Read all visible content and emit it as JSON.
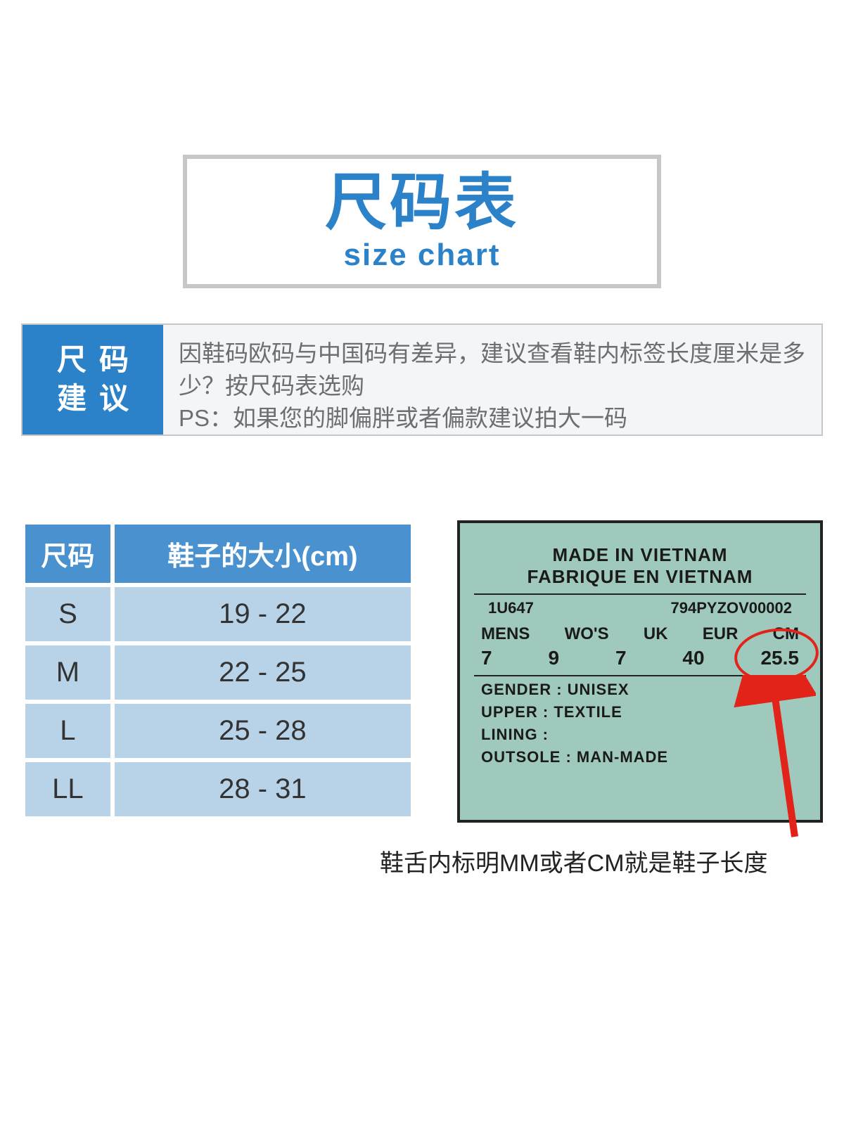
{
  "colors": {
    "brand_blue": "#2c82c9",
    "th_blue": "#4a92cf",
    "td_blue": "#b8d3e8",
    "border_gray": "#c5c7c9",
    "advice_bg": "#f4f5f6",
    "advice_text": "#6b6e72",
    "label_bg": "#9fc9bc",
    "highlight_red": "#e2231a"
  },
  "title": {
    "main": "尺码表",
    "sub": "size chart"
  },
  "advice": {
    "label_line1": "尺码",
    "label_line2": "建议",
    "text": "因鞋码欧码与中国码有差异，建议查看鞋内标签长度厘米是多少？按尺码表选购\nPS：如果您的脚偏胖或者偏款建议拍大一码"
  },
  "size_table": {
    "columns": [
      "尺码",
      "鞋子的大小(cm)"
    ],
    "rows": [
      [
        "S",
        "19 - 22"
      ],
      [
        "M",
        "22 - 25"
      ],
      [
        "L",
        "25 - 28"
      ],
      [
        "LL",
        "28 - 31"
      ]
    ]
  },
  "shoe_label": {
    "line1": "MADE IN VIETNAM",
    "line2": "FABRIQUE EN  VIETNAM",
    "code_left": "1U647",
    "code_right": "794PYZOV00002",
    "size_headers": [
      "MENS",
      "WO'S",
      "UK",
      "EUR",
      "CM"
    ],
    "size_values": [
      "7",
      "9",
      "7",
      "40",
      "25.5"
    ],
    "spec_gender": "GENDER : UNISEX",
    "spec_upper": "UPPER   :  TEXTILE",
    "spec_lining": "LINING  :",
    "spec_outsole": "OUTSOLE : MAN-MADE"
  },
  "caption": "鞋舌内标明MM或者CM就是鞋子长度"
}
